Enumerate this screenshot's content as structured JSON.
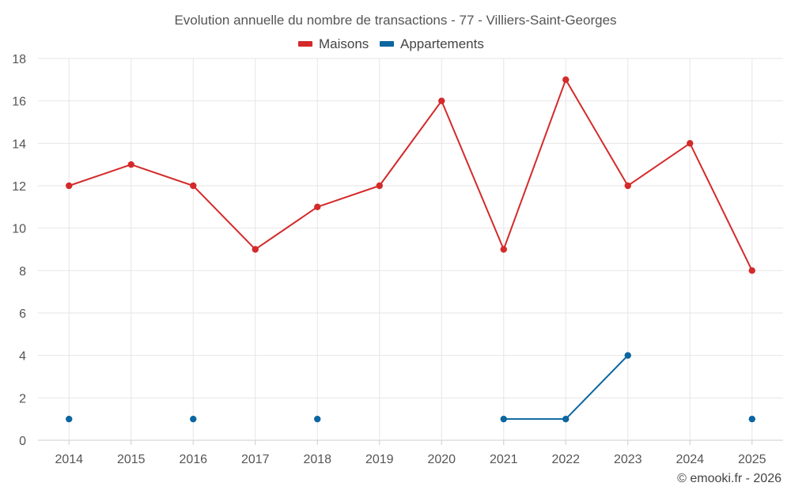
{
  "chart_data": {
    "type": "line",
    "title": "Evolution annuelle du nombre de transactions - 77 - Villiers-Saint-Georges",
    "categories": [
      "2014",
      "2015",
      "2016",
      "2017",
      "2018",
      "2019",
      "2020",
      "2021",
      "2022",
      "2023",
      "2024",
      "2025"
    ],
    "ylim": [
      0,
      18
    ],
    "yticks": [
      0,
      2,
      4,
      6,
      8,
      10,
      12,
      14,
      16,
      18
    ],
    "grid": true,
    "legend_position": "top-center",
    "series": [
      {
        "name": "Maisons",
        "color": "#d42a2a",
        "values": [
          12,
          13,
          12,
          9,
          11,
          12,
          16,
          9,
          17,
          12,
          14,
          8
        ]
      },
      {
        "name": "Appartements",
        "color": "#0b65a0",
        "values": [
          1,
          null,
          1,
          null,
          1,
          null,
          null,
          1,
          1,
          4,
          null,
          1
        ]
      }
    ]
  },
  "credit": "© emooki.fr - 2026"
}
